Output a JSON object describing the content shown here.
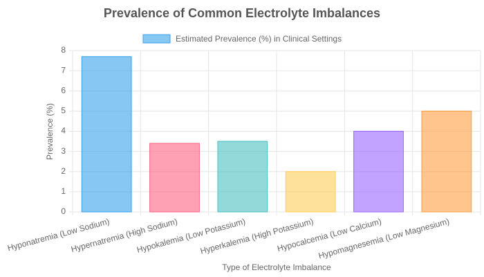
{
  "chart_data": {
    "type": "bar",
    "title": "Prevalence of Common Electrolyte Imbalances",
    "x_label": "Type of Electrolyte Imbalance",
    "y_label": "Prevalence (%)",
    "categories": [
      "Hyponatremia (Low Sodium)",
      "Hypernatremia (High Sodium)",
      "Hypokalemia (Low Potassium)",
      "Hyperkalemia (High Potassium)",
      "Hypocalcemia (Low Calcium)",
      "Hypomagnesemia (Low Magnesium)"
    ],
    "series": [
      {
        "name": "Estimated Prevalence (%) in Clinical Settings",
        "color": "#36a2eb",
        "colors": [
          "#36a2eb",
          "#ff6384",
          "#4bc0c0",
          "#ffce56",
          "#9966ff",
          "#ff9f40"
        ],
        "values": [
          7.7,
          3.4,
          3.5,
          2.0,
          4.0,
          5.0
        ]
      }
    ],
    "ylim": [
      0,
      8
    ],
    "yticks": [
      0,
      1,
      2,
      3,
      4,
      5,
      6,
      7,
      8
    ],
    "grid": true,
    "legend": "top"
  }
}
